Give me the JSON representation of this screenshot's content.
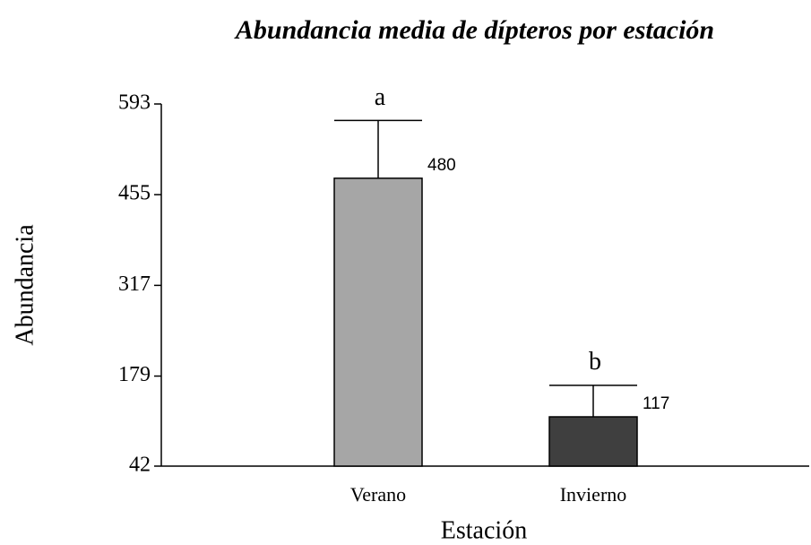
{
  "chart_data": {
    "type": "bar",
    "title": "Abundancia media de dípteros por estación",
    "x_label": "Estación",
    "y_label": "Abundancia",
    "categories": [
      "Verano",
      "Invierno"
    ],
    "values": [
      480,
      117
    ],
    "errors": [
      88,
      48
    ],
    "colors": [
      "#a6a6a6",
      "#3f3f3f"
    ],
    "annotations": [
      "a",
      "b"
    ],
    "ylim": [
      42,
      593
    ],
    "yticks": [
      42,
      179,
      317,
      455,
      593
    ],
    "grid": false
  }
}
